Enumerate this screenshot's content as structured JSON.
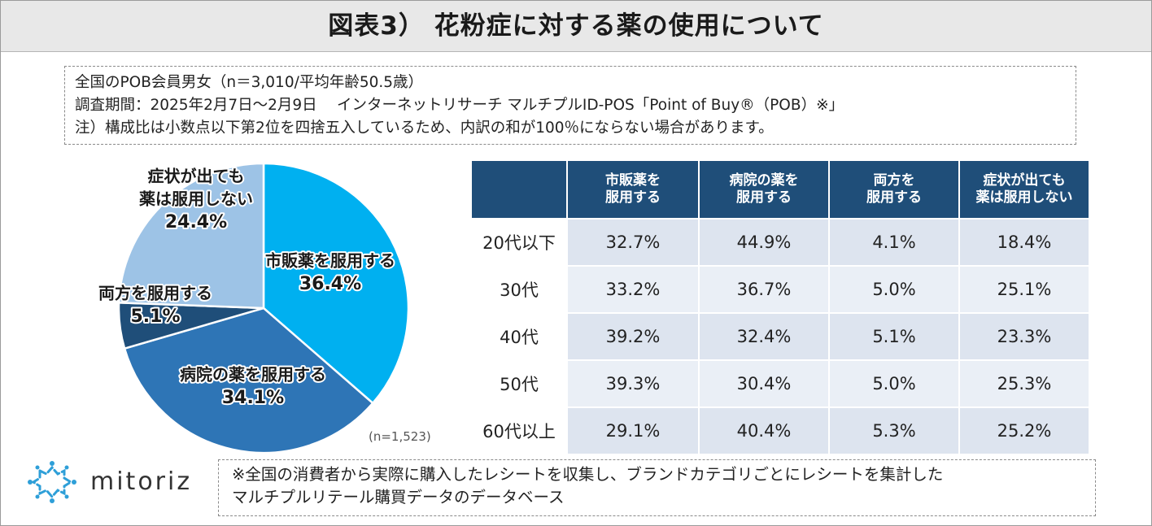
{
  "title": "図表3） 花粉症に対する薬の使用について",
  "info": {
    "line1": "全国のPOB会員男女（n＝3,010/平均年齢50.5歳）",
    "line2": "調査期間：2025年2月7日～2月9日　 インターネットリサーチ マルチプルID-POS「Point of Buy®（POB）※」",
    "line3": "注）構成比は小数点以下第2位を四捨五入しているため、内訳の和が100％にならない場合があります。"
  },
  "chart_data": [
    {
      "type": "pie",
      "title": "",
      "slices": [
        {
          "label_lines": [
            "市販薬を服用する"
          ],
          "value": 36.4,
          "value_text": "36.4%",
          "color": "#00b0f0"
        },
        {
          "label_lines": [
            "病院の薬を服用する"
          ],
          "value": 34.1,
          "value_text": "34.1%",
          "color": "#2e75b6"
        },
        {
          "label_lines": [
            "両方を服用する"
          ],
          "value": 5.1,
          "value_text": "5.1%",
          "color": "#1f4e79"
        },
        {
          "label_lines": [
            "症状が出ても",
            "薬は服用しない"
          ],
          "value": 24.4,
          "value_text": "24.4%",
          "color": "#9dc3e6"
        }
      ],
      "start": "12 o'clock, clockwise",
      "sample_note": "(n=1,523)"
    },
    {
      "type": "table",
      "corner": "",
      "columns": [
        [
          "市販薬を",
          "服用する"
        ],
        [
          "病院の薬を",
          "服用する"
        ],
        [
          "両方を",
          "服用する"
        ],
        [
          "症状が出ても",
          "薬は服用しない"
        ]
      ],
      "rows": [
        {
          "label": "20代以下",
          "values": [
            "32.7%",
            "44.9%",
            "4.1%",
            "18.4%"
          ]
        },
        {
          "label": "30代",
          "values": [
            "33.2%",
            "36.7%",
            "5.0%",
            "25.1%"
          ]
        },
        {
          "label": "40代",
          "values": [
            "39.2%",
            "32.4%",
            "5.1%",
            "23.3%"
          ]
        },
        {
          "label": "50代",
          "values": [
            "39.3%",
            "30.4%",
            "5.0%",
            "25.3%"
          ]
        },
        {
          "label": "60代以上",
          "values": [
            "29.1%",
            "40.4%",
            "5.3%",
            "25.2%"
          ]
        }
      ]
    }
  ],
  "logo": {
    "text": "mitoriz",
    "icon": "mitoriz-star-logo-icon",
    "color": "#2e9fd8"
  },
  "footnote": {
    "line1": "※全国の消費者から実際に購入したレシートを収集し、ブランドカテゴリごとにレシートを集計した",
    "line2": "マルチプルリテール購買データのデータベース"
  }
}
